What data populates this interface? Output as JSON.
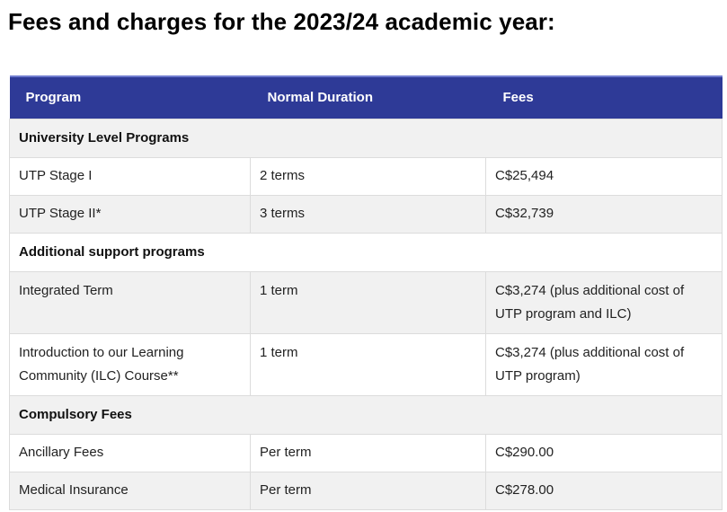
{
  "page": {
    "heading": "Fees and charges for the 2023/24 academic year:"
  },
  "table": {
    "headers": [
      "Program",
      "Normal Duration",
      "Fees"
    ],
    "sections": [
      {
        "title": "University Level Programs",
        "rows": [
          {
            "program": "UTP Stage I",
            "duration": "2 terms",
            "fees": "C$25,494"
          },
          {
            "program": "UTP Stage II*",
            "duration": "3 terms",
            "fees": "C$32,739"
          }
        ]
      },
      {
        "title": "Additional support programs",
        "rows": [
          {
            "program": "Integrated Term",
            "duration": "1 term",
            "fees": "C$3,274 (plus additional cost of UTP program and ILC)"
          },
          {
            "program": "Introduction to our Learning Community (ILC) Course**",
            "duration": "1 term",
            "fees": "C$3,274 (plus additional cost of UTP program)"
          }
        ]
      },
      {
        "title": "Compulsory Fees",
        "rows": [
          {
            "program": "Ancillary Fees",
            "duration": "Per term",
            "fees": "C$290.00"
          },
          {
            "program": "Medical Insurance",
            "duration": "Per term",
            "fees": "C$278.00"
          }
        ]
      }
    ]
  },
  "colors": {
    "header_bg": "#2e3a97",
    "header_text": "#ffffff",
    "shaded_row": "#f1f1f1",
    "border": "#dcdcdc"
  }
}
